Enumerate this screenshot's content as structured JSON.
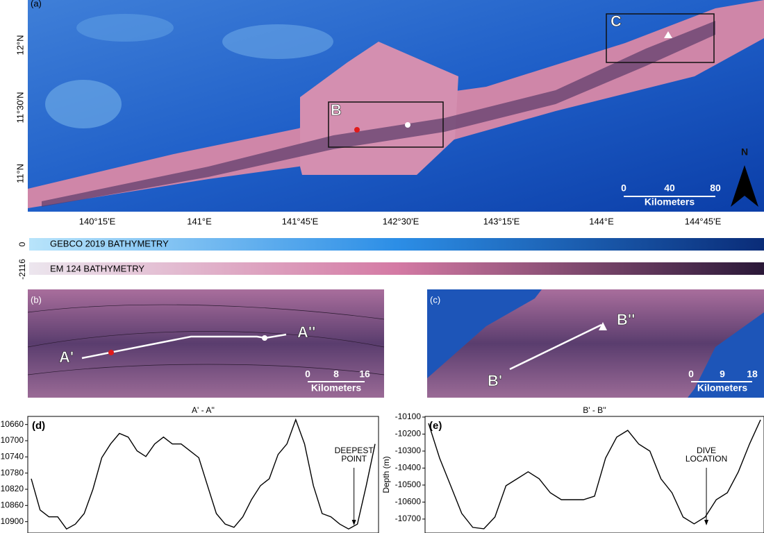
{
  "map_a": {
    "label": "(a)",
    "box_b": "B",
    "box_c": "C",
    "lat_labels": [
      "12°N",
      "11°30'N",
      "11°N"
    ],
    "lon_labels": [
      "140°15'E",
      "141°E",
      "141°45'E",
      "142°30'E",
      "143°15'E",
      "144°E",
      "144°45'E"
    ],
    "scale": [
      0,
      40,
      80
    ],
    "scale_unit": "Kilometers",
    "north": "N"
  },
  "colorbars": {
    "top_value": 0,
    "bottom_value": -2116,
    "gebco": "GEBCO 2019 BATHYMETRY",
    "em124": "EM 124 BATHYMETRY"
  },
  "map_b": {
    "label": "(b)",
    "start": "A'",
    "end": "A''",
    "scale": [
      0,
      8,
      16
    ],
    "scale_unit": "Kilometers"
  },
  "map_c": {
    "label": "(c)",
    "start": "B'",
    "end": "B''",
    "scale": [
      0,
      9,
      18
    ],
    "scale_unit": "Kilometers"
  },
  "chart_data": [
    {
      "type": "line",
      "panel_label": "(d)",
      "title": "A' - A''",
      "color": "#000000",
      "values": [
        10794,
        10871,
        10888,
        10888,
        10918,
        10906,
        10880,
        10820,
        10742,
        10708,
        10682,
        10691,
        10725,
        10739,
        10708,
        10691,
        10708,
        10708,
        10725,
        10742,
        10811,
        10880,
        10906,
        10914,
        10888,
        10845,
        10811,
        10794,
        10734,
        10708,
        10648,
        10708,
        10811,
        10880,
        10888,
        10906,
        10918,
        10906,
        10811,
        10708
      ],
      "ylim": [
        10928,
        10640
      ],
      "yticks": [
        10660,
        10700,
        10740,
        10780,
        10820,
        10860,
        10900
      ],
      "annotation": [
        "DEEPEST",
        "POINT"
      ]
    },
    {
      "type": "line",
      "panel_label": "(e)",
      "title": "B' - B''",
      "ylabel": "Depth (m)",
      "color": "#000000",
      "values": [
        -10137,
        -10341,
        -10504,
        -10667,
        -10749,
        -10757,
        -10688,
        -10504,
        -10463,
        -10422,
        -10463,
        -10545,
        -10586,
        -10586,
        -10586,
        -10565,
        -10341,
        -10218,
        -10178,
        -10259,
        -10300,
        -10463,
        -10545,
        -10688,
        -10728,
        -10688,
        -10586,
        -10545,
        -10422,
        -10259,
        -10116
      ],
      "ylim": [
        -10782,
        -10096
      ],
      "yticks": [
        -10100,
        -10200,
        -10300,
        -10400,
        -10500,
        -10600,
        -10700
      ],
      "annotation": [
        "DIVE",
        "LOCATION"
      ]
    }
  ]
}
